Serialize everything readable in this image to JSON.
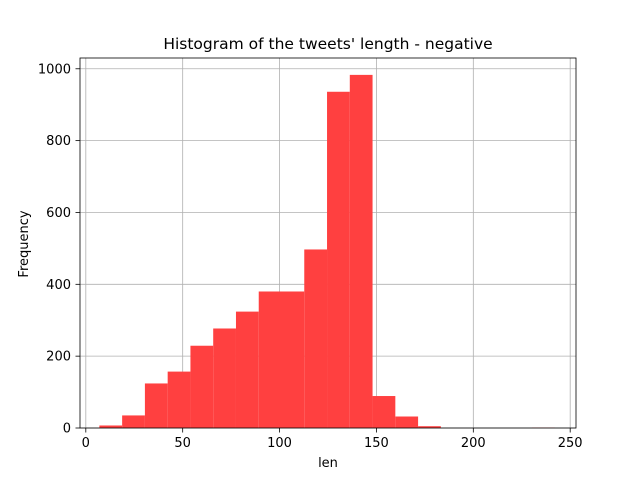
{
  "chart_data": {
    "type": "bar",
    "title": "Histogram of the tweets' length - negative",
    "xlabel": "len",
    "ylabel": "Frequency",
    "xlim": [
      -3,
      253
    ],
    "ylim": [
      0,
      1030
    ],
    "x_ticks": [
      0,
      50,
      100,
      150,
      200,
      250
    ],
    "y_ticks": [
      0,
      200,
      400,
      600,
      800,
      1000
    ],
    "grid": true,
    "bar_color": "#ff4040",
    "bins": [
      {
        "x0": 7.0,
        "x1": 18.75,
        "count": 7
      },
      {
        "x0": 18.75,
        "x1": 30.5,
        "count": 35
      },
      {
        "x0": 30.5,
        "x1": 42.25,
        "count": 124
      },
      {
        "x0": 42.25,
        "x1": 54.0,
        "count": 157
      },
      {
        "x0": 54.0,
        "x1": 65.75,
        "count": 229
      },
      {
        "x0": 65.75,
        "x1": 77.5,
        "count": 277
      },
      {
        "x0": 77.5,
        "x1": 89.25,
        "count": 324
      },
      {
        "x0": 89.25,
        "x1": 101.0,
        "count": 380
      },
      {
        "x0": 101.0,
        "x1": 112.75,
        "count": 380
      },
      {
        "x0": 112.75,
        "x1": 124.5,
        "count": 497
      },
      {
        "x0": 124.5,
        "x1": 136.25,
        "count": 936
      },
      {
        "x0": 136.25,
        "x1": 148.0,
        "count": 983
      },
      {
        "x0": 148.0,
        "x1": 159.75,
        "count": 89
      },
      {
        "x0": 159.75,
        "x1": 171.5,
        "count": 32
      },
      {
        "x0": 171.5,
        "x1": 183.25,
        "count": 5
      },
      {
        "x0": 183.25,
        "x1": 195.0,
        "count": 0
      },
      {
        "x0": 195.0,
        "x1": 206.75,
        "count": 0
      },
      {
        "x0": 206.75,
        "x1": 218.5,
        "count": 0
      },
      {
        "x0": 218.5,
        "x1": 230.25,
        "count": 0
      },
      {
        "x0": 230.25,
        "x1": 242.0,
        "count": 1
      }
    ]
  }
}
